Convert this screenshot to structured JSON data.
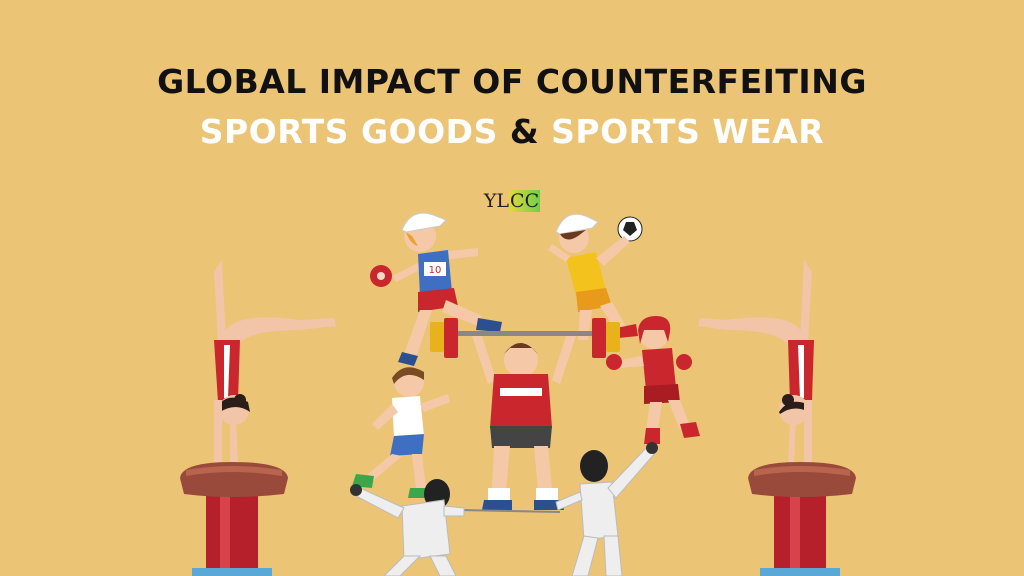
{
  "headline": {
    "line1": "GLOBAL IMPACT OF COUNTERFEITING",
    "line2_part1": "SPORTS GOODS",
    "line2_amp": "&",
    "line2_part2": "SPORTS WEAR"
  },
  "logo": {
    "prefix": "YL",
    "highlight": "CC"
  },
  "bib_number": "10",
  "colors": {
    "background": "#ecc476",
    "headline_dark": "#111111",
    "headline_light": "#ffffff",
    "vault_red": "#b5202a"
  }
}
